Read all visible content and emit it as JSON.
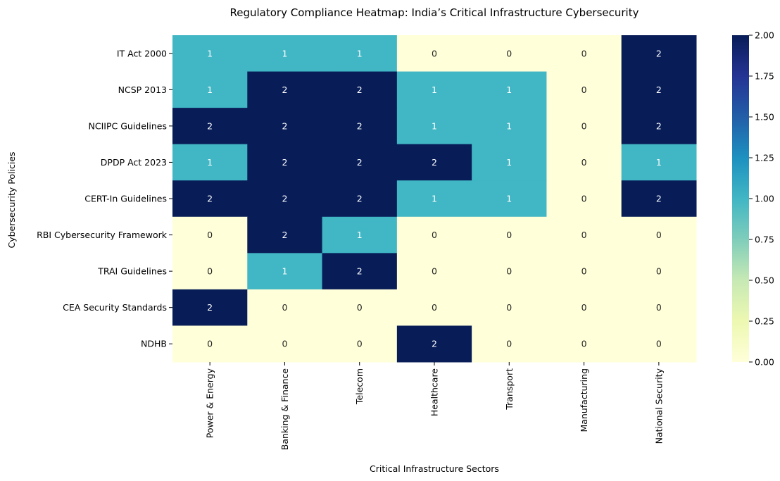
{
  "chart_data": {
    "type": "heatmap",
    "title": "Regulatory Compliance Heatmap: India’s Critical Infrastructure Cybersecurity",
    "xlabel": "Critical Infrastructure Sectors",
    "ylabel": "Cybersecurity Policies",
    "x_categories": [
      "Power & Energy",
      "Banking & Finance",
      "Telecom",
      "Healthcare",
      "Transport",
      "Manufacturing",
      "National Security"
    ],
    "y_categories": [
      "IT Act 2000",
      "NCSP 2013",
      "NCIIPC Guidelines",
      "DPDP Act 2023",
      "CERT-In Guidelines",
      "RBI Cybersecurity Framework",
      "TRAI Guidelines",
      "CEA Security Standards",
      "NDHB"
    ],
    "values": [
      [
        1,
        1,
        1,
        0,
        0,
        0,
        2
      ],
      [
        1,
        2,
        2,
        1,
        1,
        0,
        2
      ],
      [
        2,
        2,
        2,
        1,
        1,
        0,
        2
      ],
      [
        1,
        2,
        2,
        2,
        1,
        0,
        1
      ],
      [
        2,
        2,
        2,
        1,
        1,
        0,
        2
      ],
      [
        0,
        2,
        1,
        0,
        0,
        0,
        0
      ],
      [
        0,
        1,
        2,
        0,
        0,
        0,
        0
      ],
      [
        2,
        0,
        0,
        0,
        0,
        0,
        0
      ],
      [
        0,
        0,
        0,
        2,
        0,
        0,
        0
      ]
    ],
    "annotated": true,
    "colormap": "YlGnBu",
    "colors": {
      "low": "#ffffd9",
      "mid": "#41b6c4",
      "high": "#081d58"
    },
    "vmin": 0,
    "vmax": 2,
    "colorbar_ticks": [
      "0.00",
      "0.25",
      "0.50",
      "0.75",
      "1.00",
      "1.25",
      "1.50",
      "1.75",
      "2.00"
    ],
    "colorbar_position": "right",
    "grid": false
  }
}
